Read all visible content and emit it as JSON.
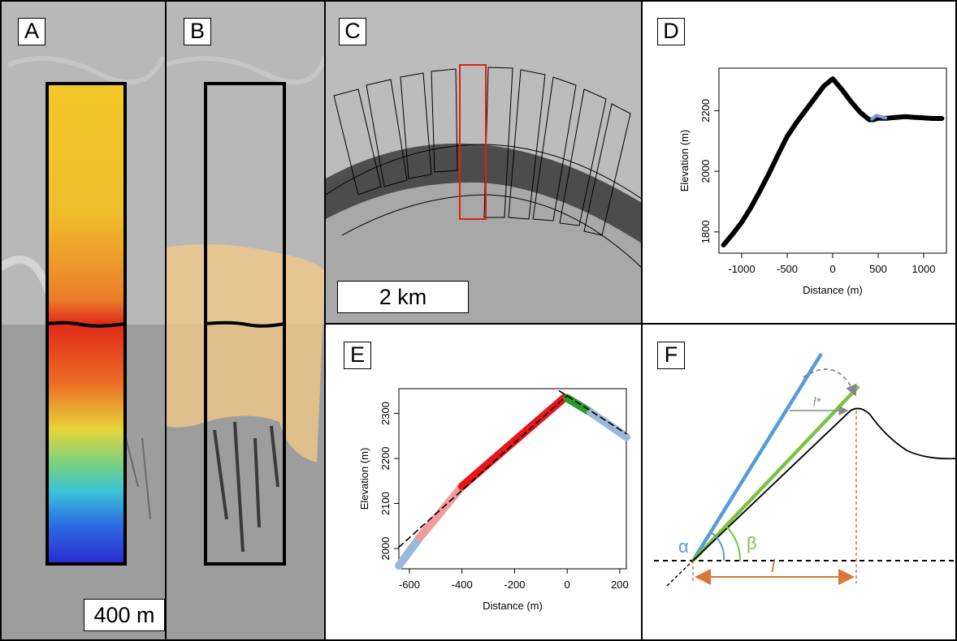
{
  "panels": {
    "A": {
      "label": "A",
      "scale_label": "400 m"
    },
    "B": {
      "label": "B"
    },
    "C": {
      "label": "C",
      "scale_label": "2 km"
    },
    "D": {
      "label": "D"
    },
    "E": {
      "label": "E"
    },
    "F": {
      "label": "F",
      "symbols": {
        "alpha": "α",
        "beta": "β",
        "l": "l",
        "l_star": "l*"
      }
    }
  },
  "colors": {
    "profile_black": "#000000",
    "profile_blue": "#6f9fd8",
    "fit_red": "#e8161b",
    "fit_light_red": "#f29b9b",
    "fit_green": "#2e9a2e",
    "fit_light_blue": "#9ab8dc",
    "line_blue": "#5b9bd5",
    "line_green": "#7dc242",
    "line_orange": "#d9763a",
    "deposit_tan": "#f0c98a"
  },
  "chart_data": [
    {
      "panel": "D",
      "type": "line",
      "title": "",
      "xlabel": "Distance (m)",
      "ylabel": "Elevation (m)",
      "xlim": [
        -1250,
        1250
      ],
      "ylim": [
        1730,
        2340
      ],
      "x_ticks": [
        -1000,
        -500,
        0,
        500,
        1000
      ],
      "x_tick_labels": [
        "-1000",
        "-500",
        "0",
        "500",
        "1000"
      ],
      "y_ticks": [
        1800,
        2000,
        2200
      ],
      "y_tick_labels": [
        "1800",
        "2000",
        "2200"
      ],
      "series": [
        {
          "color": "#000000",
          "x": [
            -1200,
            -1100,
            -1000,
            -900,
            -800,
            -700,
            -600,
            -500,
            -400,
            -300,
            -200,
            -100,
            0,
            100,
            200,
            300,
            400,
            450,
            500,
            600,
            700,
            800,
            900,
            1000,
            1100,
            1200
          ],
          "y": [
            1757,
            1793,
            1832,
            1880,
            1935,
            1993,
            2055,
            2115,
            2160,
            2200,
            2240,
            2280,
            2305,
            2270,
            2230,
            2195,
            2170,
            2170,
            2175,
            2175,
            2178,
            2180,
            2178,
            2176,
            2174,
            2174
          ]
        },
        {
          "color": "#6f9fd8",
          "x": [
            430,
            480,
            530,
            580
          ],
          "y": [
            2172,
            2184,
            2180,
            2176
          ]
        }
      ]
    },
    {
      "panel": "E",
      "type": "line",
      "title": "",
      "xlabel": "Distance (m)",
      "ylabel": "Elevation (m)",
      "xlim": [
        -640,
        225
      ],
      "ylim": [
        1955,
        2355
      ],
      "x_ticks": [
        -600,
        -400,
        -200,
        0,
        200
      ],
      "x_tick_labels": [
        "-600",
        "-400",
        "-200",
        "0",
        "200"
      ],
      "y_ticks": [
        2000,
        2100,
        2200,
        2300
      ],
      "y_tick_labels": [
        "2000",
        "2100",
        "2200",
        "2300"
      ],
      "series": [
        {
          "color": "#9ab8dc",
          "x": [
            -640,
            -560
          ],
          "y": [
            1962,
            2025
          ]
        },
        {
          "color": "#f29b9b",
          "x": [
            -560,
            -400
          ],
          "y": [
            2025,
            2138
          ]
        },
        {
          "color": "#e8161b",
          "x": [
            -400,
            -10
          ],
          "y": [
            2138,
            2335
          ]
        },
        {
          "color": "#2e9a2e",
          "x": [
            0,
            90
          ],
          "y": [
            2334,
            2302
          ]
        },
        {
          "color": "#9ab8dc",
          "x": [
            90,
            225
          ],
          "y": [
            2302,
            2248
          ]
        },
        {
          "color": "#000000",
          "dashed": true,
          "x": [
            -640,
            0
          ],
          "y": [
            2003,
            2340
          ]
        },
        {
          "color": "#000000",
          "dashed": true,
          "x": [
            -30,
            225
          ],
          "y": [
            2350,
            2255
          ]
        }
      ]
    }
  ]
}
